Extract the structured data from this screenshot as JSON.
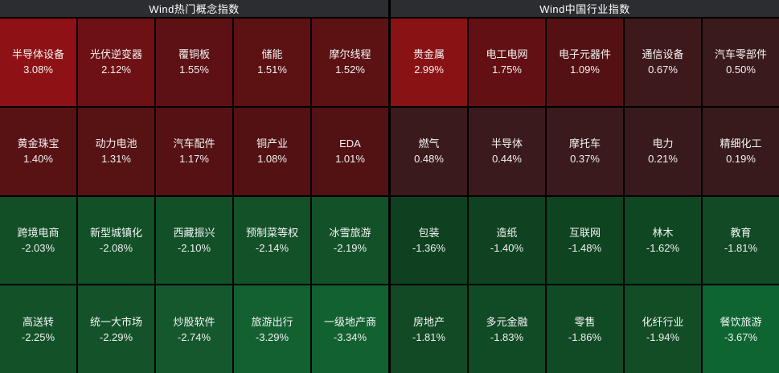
{
  "chart_data": [
    {
      "type": "heatmap",
      "title": "Wind热门概念指数",
      "columns": 5,
      "rows": 4,
      "legend": "red = gain (brighter = larger), green = loss (brighter = larger)",
      "cells": [
        {
          "label": "半导体设备",
          "value": 3.08,
          "pct": "3.08%",
          "color": "#8e1215"
        },
        {
          "label": "光伏逆变器",
          "value": 2.12,
          "pct": "2.12%",
          "color": "#6d1114"
        },
        {
          "label": "覆铜板",
          "value": 1.55,
          "pct": "1.55%",
          "color": "#5d1114"
        },
        {
          "label": "储能",
          "value": 1.51,
          "pct": "1.51%",
          "color": "#5c1113"
        },
        {
          "label": "摩尔线程",
          "value": 1.52,
          "pct": "1.52%",
          "color": "#5c1113"
        },
        {
          "label": "黄金珠宝",
          "value": 1.4,
          "pct": "1.40%",
          "color": "#591214"
        },
        {
          "label": "动力电池",
          "value": 1.31,
          "pct": "1.31%",
          "color": "#571214"
        },
        {
          "label": "汽车配件",
          "value": 1.17,
          "pct": "1.17%",
          "color": "#551113"
        },
        {
          "label": "铜产业",
          "value": 1.08,
          "pct": "1.08%",
          "color": "#531113"
        },
        {
          "label": "EDA",
          "value": 1.01,
          "pct": "1.01%",
          "color": "#521113"
        },
        {
          "label": "跨境电商",
          "value": -2.03,
          "pct": "-2.03%",
          "color": "#124f27"
        },
        {
          "label": "新型城镇化",
          "value": -2.08,
          "pct": "-2.08%",
          "color": "#125028"
        },
        {
          "label": "西藏振兴",
          "value": -2.1,
          "pct": "-2.10%",
          "color": "#125028"
        },
        {
          "label": "预制菜等权",
          "value": -2.14,
          "pct": "-2.14%",
          "color": "#135128"
        },
        {
          "label": "冰雪旅游",
          "value": -2.19,
          "pct": "-2.19%",
          "color": "#135228"
        },
        {
          "label": "高送转",
          "value": -2.25,
          "pct": "-2.25%",
          "color": "#135229"
        },
        {
          "label": "统一大市场",
          "value": -2.29,
          "pct": "-2.29%",
          "color": "#14532a"
        },
        {
          "label": "炒股软件",
          "value": -2.74,
          "pct": "-2.74%",
          "color": "#15582d"
        },
        {
          "label": "旅游出行",
          "value": -3.29,
          "pct": "-3.29%",
          "color": "#136031"
        },
        {
          "label": "一级地产商",
          "value": -3.34,
          "pct": "-3.34%",
          "color": "#126131"
        }
      ]
    },
    {
      "type": "heatmap",
      "title": "Wind中国行业指数",
      "columns": 5,
      "rows": 4,
      "legend": "red = gain (brighter = larger), green = loss (brighter = larger)",
      "cells": [
        {
          "label": "贵金属",
          "value": 2.99,
          "pct": "2.99%",
          "color": "#891215"
        },
        {
          "label": "电工电网",
          "value": 1.75,
          "pct": "1.75%",
          "color": "#621013"
        },
        {
          "label": "电子元器件",
          "value": 1.09,
          "pct": "1.09%",
          "color": "#531113"
        },
        {
          "label": "通信设备",
          "value": 0.67,
          "pct": "0.67%",
          "color": "#3e191c"
        },
        {
          "label": "汽车零部件",
          "value": 0.5,
          "pct": "0.50%",
          "color": "#3b1a1c"
        },
        {
          "label": "燃气",
          "value": 0.48,
          "pct": "0.48%",
          "color": "#3b1a1c"
        },
        {
          "label": "半导体",
          "value": 0.44,
          "pct": "0.44%",
          "color": "#3a1a1c"
        },
        {
          "label": "摩托车",
          "value": 0.37,
          "pct": "0.37%",
          "color": "#3a1a1c"
        },
        {
          "label": "电力",
          "value": 0.21,
          "pct": "0.21%",
          "color": "#381a1c"
        },
        {
          "label": "精细化工",
          "value": 0.19,
          "pct": "0.19%",
          "color": "#381a1c"
        },
        {
          "label": "包装",
          "value": -1.36,
          "pct": "-1.36%",
          "color": "#0d4120"
        },
        {
          "label": "造纸",
          "value": -1.4,
          "pct": "-1.40%",
          "color": "#0e4220"
        },
        {
          "label": "互联网",
          "value": -1.48,
          "pct": "-1.48%",
          "color": "#0f4421"
        },
        {
          "label": "林木",
          "value": -1.62,
          "pct": "-1.62%",
          "color": "#104723"
        },
        {
          "label": "教育",
          "value": -1.81,
          "pct": "-1.81%",
          "color": "#114a24"
        },
        {
          "label": "房地产",
          "value": -1.81,
          "pct": "-1.81%",
          "color": "#114a24"
        },
        {
          "label": "多元金融",
          "value": -1.83,
          "pct": "-1.83%",
          "color": "#114b25"
        },
        {
          "label": "零售",
          "value": -1.86,
          "pct": "-1.86%",
          "color": "#114b25"
        },
        {
          "label": "化纤行业",
          "value": -1.94,
          "pct": "-1.94%",
          "color": "#124d26"
        },
        {
          "label": "餐饮旅游",
          "value": -3.67,
          "pct": "-3.67%",
          "color": "#0e6532"
        }
      ]
    }
  ],
  "colors": {
    "header_bg": "#2b2d30",
    "header_text": "#ffffff",
    "grid_line": "#000000",
    "cell_text": "#f5f5f5"
  }
}
